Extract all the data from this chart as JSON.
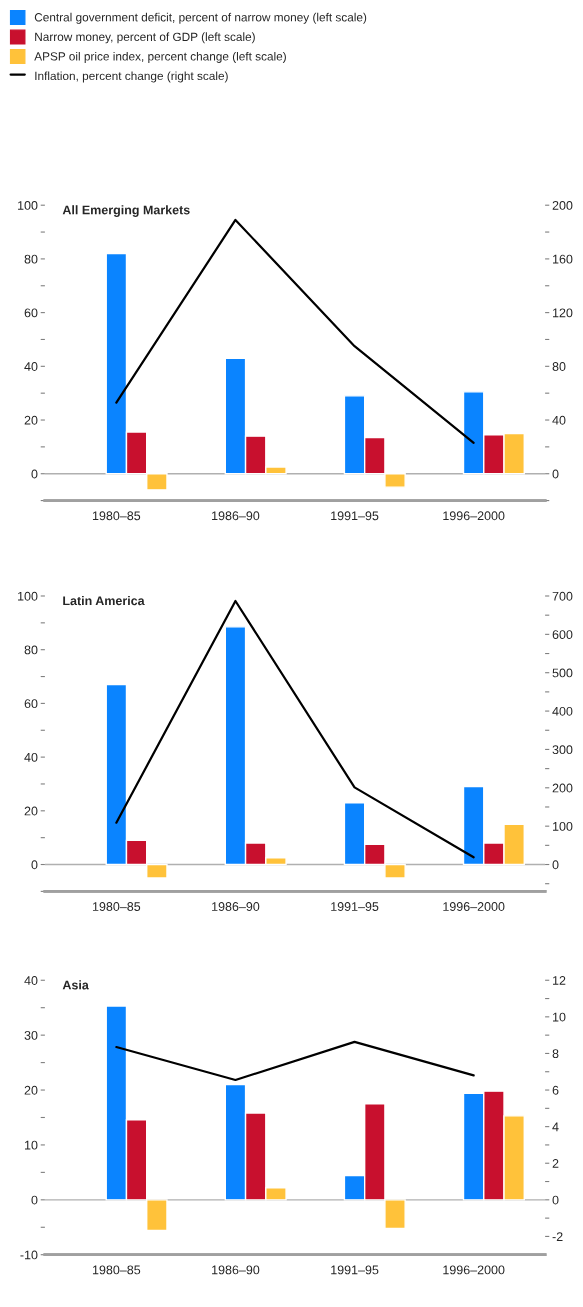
{
  "chart_data": [
    {
      "type": "bar",
      "title": "All Emerging Markets",
      "legend": "top",
      "categories": [
        "1980–85",
        "1986–90",
        "1991–95",
        "1996–2000"
      ],
      "series": [
        {
          "name": "Central government deficit, percent of narrow money (left scale)",
          "color": "#0a84ff",
          "values": [
            82,
            43,
            29,
            30.5
          ]
        },
        {
          "name": "Narrow money, percent of GDP (left scale)",
          "color": "#c8102e",
          "values": [
            15.5,
            14,
            13.5,
            14.5
          ]
        },
        {
          "name": "APSP oil price index, percent change (left scale)",
          "color": "#ffc23a",
          "values": [
            -6,
            2.5,
            -5,
            15
          ]
        },
        {
          "name": "Inflation, percent change (right scale)",
          "type": "line",
          "axis": "y2",
          "color": "#000000",
          "values": [
            53,
            189,
            95,
            23
          ]
        }
      ],
      "ylim": [
        -10,
        100
      ],
      "yticks": [
        {
          "value": -10,
          "label": null
        },
        0,
        {
          "value": 10,
          "label": null
        },
        20,
        {
          "value": 30,
          "label": null
        },
        40,
        {
          "value": 50,
          "label": null
        },
        60,
        {
          "value": 70,
          "label": null
        },
        80,
        {
          "value": 90,
          "label": null
        },
        100
      ],
      "y2lim": [
        -20,
        200
      ],
      "y2ticks": [
        {
          "value": -20,
          "label": null
        },
        0,
        {
          "value": 20,
          "label": null
        },
        40,
        {
          "value": 60,
          "label": null
        },
        80,
        {
          "value": 100,
          "label": null
        },
        120,
        {
          "value": 140,
          "label": null
        },
        160,
        {
          "value": 180,
          "label": null
        },
        200
      ],
      "ref_lines": [
        {
          "axis": "y",
          "value": 0,
          "color": "#b0b0b0"
        }
      ]
    },
    {
      "type": "bar",
      "title": "Latin America",
      "categories": [
        "1980–85",
        "1986–90",
        "1991–95",
        "1996–2000"
      ],
      "series": [
        {
          "color": "#0a84ff",
          "values": [
            67,
            88.5,
            23,
            29
          ]
        },
        {
          "color": "#c8102e",
          "values": [
            9,
            8,
            7.5,
            8
          ]
        },
        {
          "color": "#ffc23a",
          "values": [
            -5,
            2.5,
            -5,
            15
          ]
        },
        {
          "type": "line",
          "axis": "y2",
          "color": "#000000",
          "values": [
            109,
            687,
            201,
            19
          ]
        }
      ],
      "ylim": [
        -10,
        100
      ],
      "yticks": [
        {
          "value": -10,
          "label": null
        },
        0,
        {
          "value": 10,
          "label": null
        },
        20,
        {
          "value": 30,
          "label": null
        },
        40,
        {
          "value": 50,
          "label": null
        },
        60,
        {
          "value": 70,
          "label": null
        },
        80,
        {
          "value": 90,
          "label": null
        },
        100
      ],
      "y2lim": [
        -70,
        700
      ],
      "y2ticks": [
        {
          "value": -50,
          "label": null
        },
        0,
        {
          "value": 50,
          "label": null
        },
        100,
        {
          "value": 150,
          "label": null
        },
        200,
        {
          "value": 250,
          "label": null
        },
        300,
        {
          "value": 350,
          "label": null
        },
        400,
        {
          "value": 450,
          "label": null
        },
        500,
        {
          "value": 550,
          "label": null
        },
        600,
        {
          "value": 650,
          "label": null
        },
        700
      ],
      "ref_lines": [
        {
          "axis": "y",
          "value": 0,
          "color": "#b0b0b0"
        }
      ]
    },
    {
      "type": "bar",
      "title": "Asia",
      "categories": [
        "1980–85",
        "1986–90",
        "1991–95",
        "1996–2000"
      ],
      "series": [
        {
          "color": "#0a84ff",
          "values": [
            35.3,
            21,
            4.4,
            19.4
          ]
        },
        {
          "color": "#c8102e",
          "values": [
            14.6,
            15.8,
            17.5,
            19.8
          ]
        },
        {
          "color": "#ffc23a",
          "values": [
            -5.6,
            2.2,
            -5.2,
            15.3
          ]
        },
        {
          "type": "line",
          "axis": "y2",
          "color": "#000000",
          "values": [
            8.35,
            6.55,
            8.63,
            6.8
          ]
        }
      ],
      "ylim": [
        -10,
        40
      ],
      "yticks": [
        -10,
        {
          "value": -5,
          "label": null
        },
        0,
        {
          "value": 5,
          "label": null
        },
        10,
        {
          "value": 15,
          "label": null
        },
        20,
        {
          "value": 25,
          "label": null
        },
        30,
        {
          "value": 35,
          "label": null
        },
        40
      ],
      "y2lim": [
        -3,
        12
      ],
      "y2ticks": [
        -2,
        {
          "value": -1,
          "label": null
        },
        0,
        {
          "value": 1,
          "label": null
        },
        2,
        {
          "value": 3,
          "label": null
        },
        4,
        {
          "value": 5,
          "label": null
        },
        6,
        {
          "value": 7,
          "label": null
        },
        8,
        {
          "value": 9,
          "label": null
        },
        10,
        {
          "value": 11,
          "label": null
        },
        12
      ],
      "ref_lines": [
        {
          "axis": "y",
          "value": 0,
          "color": "#b0b0b0"
        }
      ]
    }
  ]
}
